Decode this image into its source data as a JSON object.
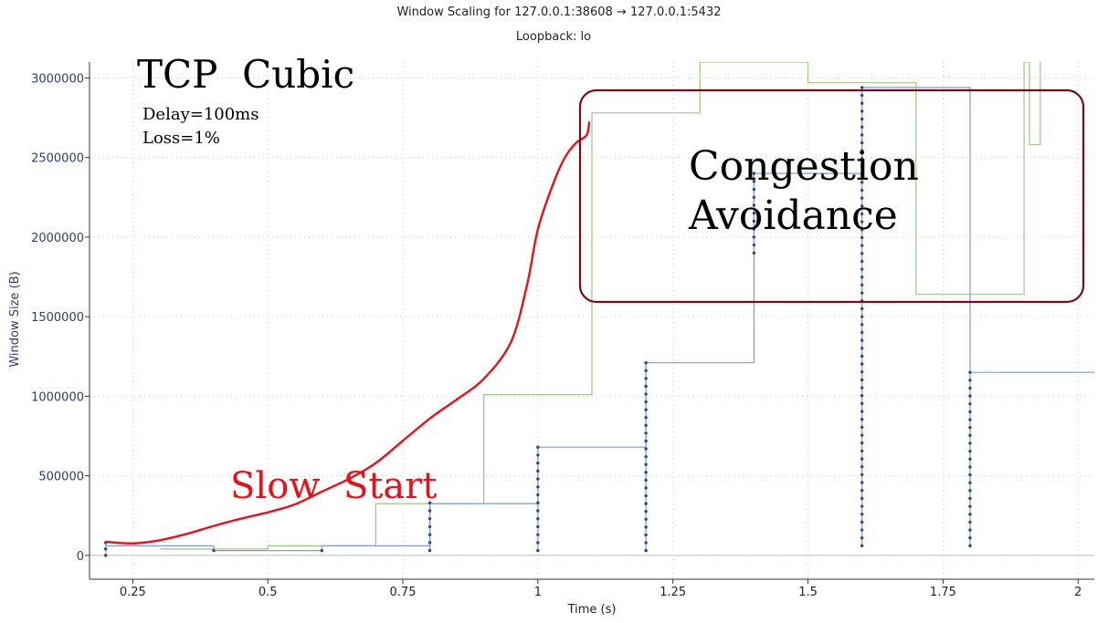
{
  "chart_data": {
    "type": "line",
    "title": "Window Scaling for 127.0.0.1:38608 → 127.0.0.1:5432",
    "subtitle": "Loopback: lo",
    "xlabel": "Time (s)",
    "ylabel": "Window Size (B)",
    "xlim": [
      0.17,
      2.03
    ],
    "ylim": [
      -150000,
      3100000
    ],
    "x_ticks": [
      0.25,
      0.5,
      0.75,
      1,
      1.25,
      1.5,
      1.75,
      2
    ],
    "x_tick_labels": [
      "0.25",
      "0.5",
      "0.75",
      "1",
      "1.25",
      "1.5",
      "1.75",
      "2"
    ],
    "y_ticks": [
      0,
      500000,
      1000000,
      1500000,
      2000000,
      2500000,
      3000000
    ],
    "y_tick_labels": [
      "0",
      "500000",
      "1000000",
      "1500000",
      "2000000",
      "2500000",
      "3000000"
    ],
    "grid": true,
    "series": [
      {
        "name": "Congestion window (red curve)",
        "color": "#e8111b",
        "x": [
          0.2,
          0.25,
          0.3,
          0.35,
          0.4,
          0.45,
          0.5,
          0.55,
          0.6,
          0.65,
          0.7,
          0.75,
          0.8,
          0.85,
          0.9,
          0.95,
          0.98,
          1.0,
          1.03,
          1.05,
          1.07,
          1.09,
          1.095
        ],
        "y": [
          85000,
          75000,
          95000,
          135000,
          185000,
          230000,
          270000,
          320000,
          400000,
          480000,
          580000,
          720000,
          860000,
          980000,
          1110000,
          1340000,
          1700000,
          2050000,
          2350000,
          2500000,
          2590000,
          2640000,
          2720000
        ]
      },
      {
        "name": "Receive window (green steps)",
        "color": "#9bc884",
        "x": [
          0.3,
          0.5,
          0.5,
          0.7,
          0.7,
          0.9,
          0.9,
          1.1,
          1.1,
          1.3,
          1.3,
          1.5,
          1.5,
          1.7,
          1.7,
          1.9,
          1.9,
          1.91,
          1.91,
          1.93,
          1.93
        ],
        "y": [
          40000,
          40000,
          60000,
          60000,
          325000,
          325000,
          1010000,
          1010000,
          2780000,
          2780000,
          3100000,
          3100000,
          2970000,
          2970000,
          1640000,
          1640000,
          3100000,
          3100000,
          2580000,
          2580000,
          3100000
        ]
      },
      {
        "name": "Bytes in flight (blue steps)",
        "color": "#7f9ed0",
        "x": [
          0.2,
          0.4,
          0.4,
          0.6,
          0.6,
          0.8,
          0.8,
          1.0,
          1.0,
          1.2,
          1.2,
          1.4,
          1.4,
          1.6,
          1.6,
          1.8,
          1.8,
          2.03
        ],
        "y": [
          60000,
          60000,
          30000,
          30000,
          60000,
          60000,
          325000,
          325000,
          680000,
          680000,
          1210000,
          1210000,
          2400000,
          2400000,
          2940000,
          2940000,
          1150000,
          1150000
        ]
      },
      {
        "name": "Segment markers (blue dots)",
        "color": "#2a4a8a",
        "columns": [
          {
            "x": 0.2,
            "y_min": 0,
            "y_max": 80000
          },
          {
            "x": 0.4,
            "y_min": 30000,
            "y_max": 30000
          },
          {
            "x": 0.6,
            "y_min": 30000,
            "y_max": 30000
          },
          {
            "x": 0.8,
            "y_min": 30000,
            "y_max": 330000
          },
          {
            "x": 1.0,
            "y_min": 30000,
            "y_max": 680000
          },
          {
            "x": 1.2,
            "y_min": 30000,
            "y_max": 1210000
          },
          {
            "x": 1.4,
            "y_min": 1900000,
            "y_max": 2400000
          },
          {
            "x": 1.6,
            "y_min": 60000,
            "y_max": 2940000
          },
          {
            "x": 1.8,
            "y_min": 60000,
            "y_max": 1150000
          }
        ]
      }
    ],
    "annotations": {
      "title_text": "TCP  Cubic",
      "delay_text": "Delay=100ms",
      "loss_text": "Loss=1%",
      "slow_start_text": "Slow  Start",
      "congestion_line1": "Congestion",
      "congestion_line2": "Avoidance"
    }
  }
}
